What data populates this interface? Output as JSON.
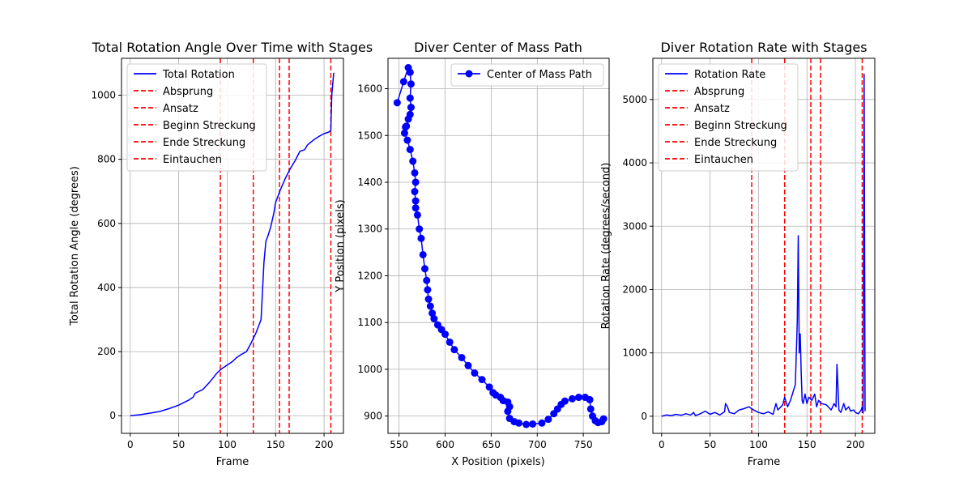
{
  "colors": {
    "line": "#0000ff",
    "stage": "#ff0000",
    "grid": "#b0b0b0"
  },
  "chart_data": [
    {
      "type": "line",
      "title": "Total Rotation Angle Over Time with Stages",
      "xlabel": "Frame",
      "ylabel": "Total Rotation Angle (degrees)",
      "xlim": [
        -9,
        220
      ],
      "ylim": [
        -55,
        1115
      ],
      "xticks": [
        0,
        50,
        100,
        150,
        200
      ],
      "yticks": [
        0,
        200,
        400,
        600,
        800,
        1000
      ],
      "grid": true,
      "legend_position": "upper-left",
      "series": [
        {
          "name": "Total Rotation",
          "x": [
            0,
            10,
            20,
            30,
            40,
            50,
            60,
            65,
            67,
            75,
            82,
            90,
            95,
            100,
            105,
            110,
            115,
            120,
            125,
            130,
            135,
            138,
            140,
            142,
            145,
            148,
            150,
            155,
            160,
            165,
            170,
            175,
            180,
            183,
            185,
            190,
            195,
            200,
            205,
            207,
            208,
            210
          ],
          "y": [
            0,
            3,
            8,
            13,
            22,
            33,
            48,
            58,
            70,
            82,
            105,
            135,
            148,
            158,
            168,
            182,
            192,
            200,
            228,
            260,
            300,
            480,
            545,
            560,
            590,
            630,
            665,
            705,
            740,
            770,
            795,
            825,
            830,
            845,
            850,
            862,
            872,
            880,
            885,
            890,
            1000,
            1070
          ]
        }
      ],
      "stages": [
        {
          "name": "Absprung",
          "x": 93
        },
        {
          "name": "Ansatz",
          "x": 127
        },
        {
          "name": "Beginn Streckung",
          "x": 154
        },
        {
          "name": "Ende Streckung",
          "x": 164
        },
        {
          "name": "Eintauchen",
          "x": 207
        }
      ]
    },
    {
      "type": "scatter",
      "title": "Diver Center of Mass Path",
      "xlabel": "X Position (pixels)",
      "ylabel": "Y Position (pixels)",
      "xlim": [
        538,
        778
      ],
      "ylim": [
        863,
        1665
      ],
      "xticks": [
        550,
        600,
        650,
        700,
        750
      ],
      "yticks": [
        900,
        1000,
        1100,
        1200,
        1300,
        1400,
        1500,
        1600
      ],
      "grid": true,
      "legend_position": "upper-right",
      "series": [
        {
          "name": "Center of Mass Path",
          "x": [
            548,
            555,
            560,
            562,
            563,
            562,
            563,
            562,
            560,
            558,
            557,
            556,
            559,
            562,
            565,
            567,
            568,
            567,
            568,
            568,
            570,
            572,
            574,
            576,
            578,
            580,
            581,
            582,
            584,
            586,
            588,
            592,
            596,
            600,
            605,
            610,
            618,
            625,
            632,
            640,
            648,
            652,
            655,
            660,
            663,
            668,
            670,
            668,
            670,
            675,
            680,
            688,
            695,
            705,
            712,
            718,
            722,
            726,
            730,
            738,
            745,
            752,
            757,
            758,
            760,
            763,
            766,
            770,
            772
          ],
          "y": [
            1570,
            1615,
            1645,
            1635,
            1610,
            1580,
            1560,
            1545,
            1535,
            1520,
            1518,
            1505,
            1490,
            1470,
            1445,
            1420,
            1400,
            1380,
            1360,
            1345,
            1330,
            1300,
            1280,
            1245,
            1215,
            1190,
            1170,
            1150,
            1135,
            1120,
            1108,
            1095,
            1085,
            1075,
            1058,
            1042,
            1025,
            1008,
            992,
            978,
            962,
            950,
            945,
            940,
            933,
            930,
            920,
            910,
            895,
            888,
            885,
            882,
            883,
            885,
            893,
            905,
            915,
            925,
            932,
            937,
            940,
            940,
            935,
            915,
            900,
            890,
            886,
            888,
            894
          ]
        }
      ]
    },
    {
      "type": "line",
      "title": "Diver Rotation Rate with Stages",
      "xlabel": "Frame",
      "ylabel": "Rotation Rate (degrees/second)",
      "xlim": [
        -9,
        220
      ],
      "ylim": [
        -270,
        5650
      ],
      "xticks": [
        0,
        50,
        100,
        150,
        200
      ],
      "yticks": [
        0,
        1000,
        2000,
        3000,
        4000,
        5000
      ],
      "grid": true,
      "legend_position": "upper-left",
      "series": [
        {
          "name": "Rotation Rate",
          "x": [
            0,
            5,
            10,
            15,
            20,
            25,
            30,
            33,
            35,
            40,
            45,
            50,
            55,
            60,
            65,
            66,
            68,
            70,
            75,
            80,
            85,
            90,
            93,
            95,
            100,
            105,
            110,
            115,
            118,
            120,
            125,
            127,
            130,
            133,
            135,
            138,
            140,
            141,
            142,
            143,
            144,
            145,
            146,
            148,
            150,
            152,
            155,
            158,
            160,
            162,
            165,
            170,
            175,
            178,
            180,
            181,
            183,
            185,
            188,
            190,
            193,
            195,
            198,
            200,
            203,
            205,
            206,
            207,
            208,
            209,
            210
          ],
          "y": [
            0,
            20,
            10,
            30,
            15,
            40,
            20,
            60,
            10,
            40,
            80,
            30,
            60,
            20,
            70,
            200,
            150,
            60,
            40,
            100,
            120,
            150,
            120,
            100,
            60,
            40,
            70,
            30,
            200,
            100,
            180,
            300,
            150,
            250,
            350,
            500,
            1500,
            2850,
            1000,
            1300,
            700,
            250,
            200,
            350,
            200,
            300,
            250,
            350,
            150,
            250,
            200,
            180,
            100,
            200,
            150,
            820,
            100,
            60,
            200,
            100,
            150,
            80,
            100,
            60,
            40,
            80,
            100,
            150,
            50,
            5400,
            80
          ]
        }
      ],
      "stages": [
        {
          "name": "Absprung",
          "x": 93
        },
        {
          "name": "Ansatz",
          "x": 127
        },
        {
          "name": "Beginn Streckung",
          "x": 154
        },
        {
          "name": "Ende Streckung",
          "x": 164
        },
        {
          "name": "Eintauchen",
          "x": 207
        }
      ]
    }
  ]
}
